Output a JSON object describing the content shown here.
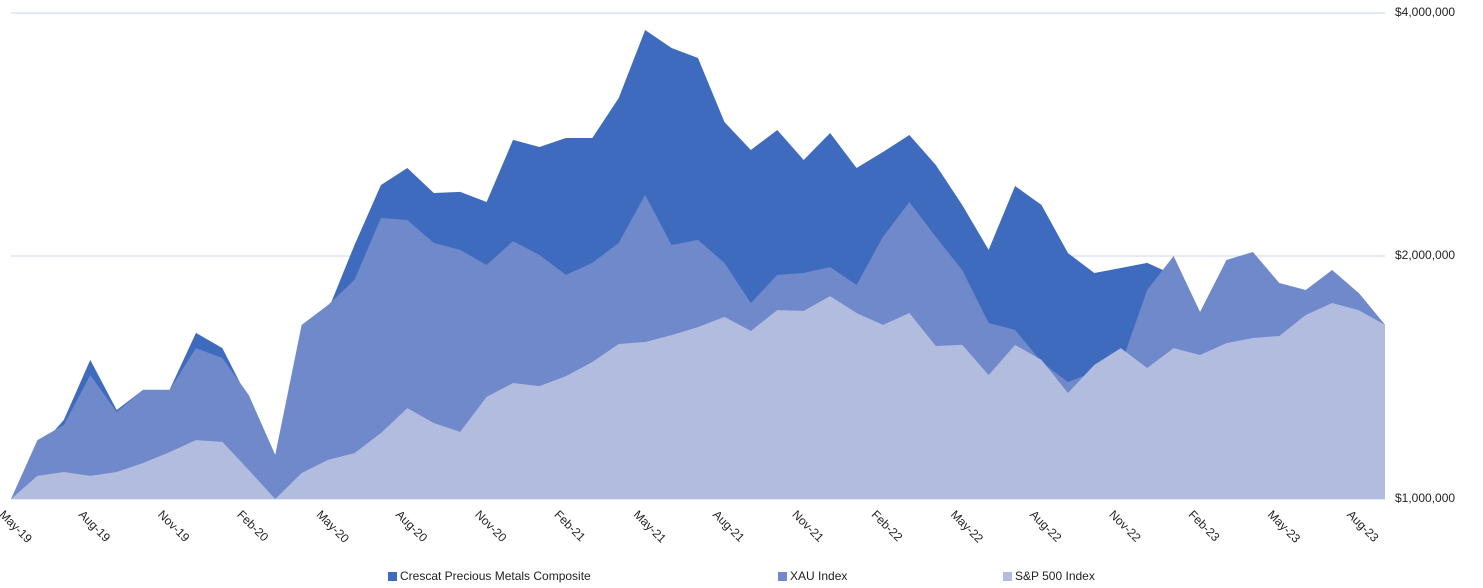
{
  "chart_data": {
    "type": "area",
    "log_scale": true,
    "grid": true,
    "legend": "bottom",
    "categories": [
      "May-19",
      null,
      null,
      "Aug-19",
      null,
      null,
      "Nov-19",
      null,
      null,
      "Feb-20",
      null,
      null,
      "May-20",
      null,
      null,
      "Aug-20",
      null,
      null,
      "Nov-20",
      null,
      null,
      "Feb-21",
      null,
      null,
      "May-21",
      null,
      null,
      "Aug-21",
      null,
      null,
      "Nov-21",
      null,
      null,
      "Feb-22",
      null,
      null,
      "May-22",
      null,
      null,
      "Aug-22",
      null,
      null,
      "Nov-22",
      null,
      null,
      "Feb-23",
      null,
      null,
      "May-23",
      null,
      null,
      "Aug-23",
      null
    ],
    "series": [
      {
        "name": "Crescat Precious Metals Composite",
        "color": "#3f6bbf",
        "values": [
          1000000,
          1150000,
          1253000,
          1487000,
          1289000,
          1365000,
          1365000,
          1606000,
          1538000,
          1326000,
          1000000,
          1445000,
          1714000,
          2064000,
          2449000,
          2571000,
          2394000,
          2401000,
          2333000,
          2785000,
          2729000,
          2800000,
          2800000,
          3139000,
          3811000,
          3620000,
          3518000,
          2931000,
          2706000,
          2865000,
          2630000,
          2841000,
          2571000,
          2691000,
          2824000,
          2593000,
          2313000,
          2035000,
          2442000,
          2313000,
          2017000,
          1905000,
          1933000,
          1961000,
          1895000,
          1705000,
          1666000,
          1620000,
          1690000,
          1764000,
          1895000,
          1800000,
          1643000
        ]
      },
      {
        "name": "XAU Index",
        "color": "#7089cb",
        "values": [
          1000000,
          1183000,
          1235000,
          1424000,
          1282000,
          1365000,
          1365000,
          1538000,
          1495000,
          1345000,
          1134000,
          1643000,
          1739000,
          1868000,
          2229000,
          2216000,
          2076000,
          2035000,
          1949000,
          2087000,
          2006000,
          1895000,
          1961000,
          2076000,
          2380000,
          2064000,
          2094000,
          1961000,
          1749000,
          1895000,
          1905000,
          1938000,
          1841000,
          2112000,
          2333000,
          2112000,
          1922000,
          1652000,
          1620000,
          1478000,
          1396000,
          1437000,
          1466000,
          1815000,
          2000000,
          1705000,
          1977000,
          2023000,
          1852000,
          1815000,
          1922000,
          1800000,
          1643000
        ]
      },
      {
        "name": "S&P 500 Index",
        "color": "#b2bcdf",
        "values": [
          1000000,
          1068000,
          1080000,
          1068000,
          1080000,
          1108000,
          1143000,
          1183000,
          1177000,
          1086000,
          1000000,
          1077000,
          1118000,
          1140000,
          1207000,
          1296000,
          1242000,
          1211000,
          1338000,
          1392000,
          1380000,
          1420000,
          1478000,
          1556000,
          1565000,
          1596000,
          1633000,
          1681000,
          1615000,
          1714000,
          1710000,
          1784000,
          1700000,
          1643000,
          1700000,
          1547000,
          1552000,
          1424000,
          1552000,
          1487000,
          1353000,
          1466000,
          1538000,
          1453000,
          1538000,
          1508000,
          1560000,
          1583000,
          1592000,
          1690000,
          1749000,
          1714000,
          1643000
        ]
      }
    ],
    "ylim": [
      1000000,
      4000000
    ],
    "yticks": [
      {
        "value": 1000000,
        "label": "$1,000,000"
      },
      {
        "value": 2000000,
        "label": "$2,000,000"
      },
      {
        "value": 4000000,
        "label": "$4,000,000"
      }
    ]
  }
}
